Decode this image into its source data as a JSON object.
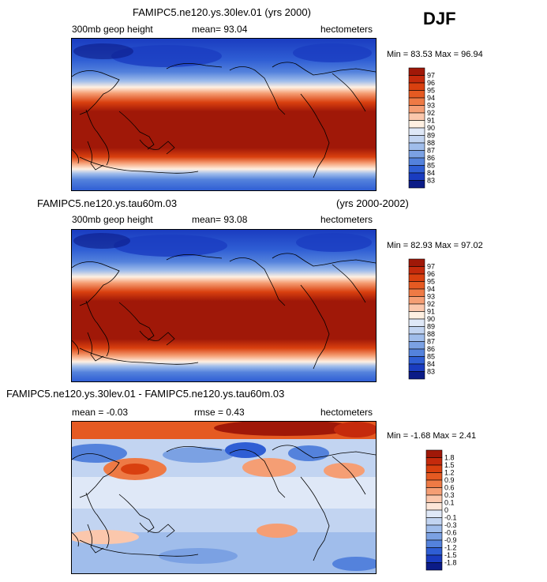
{
  "season": "DJF",
  "chart_data": [
    {
      "type": "heatmap",
      "title": "FAMIPC5.ne120.ys.30lev.01 (yrs 2000)",
      "variable": "300mb geop height",
      "summary": "mean=  93.04",
      "units": "hectometers",
      "min_max": "Min =  83.53  Max =  96.94",
      "min": 83.53,
      "max": 96.94,
      "mean": 93.04,
      "levels": [
        "97",
        "96",
        "95",
        "94",
        "93",
        "92",
        "91",
        "90",
        "89",
        "88",
        "87",
        "86",
        "85",
        "84",
        "83"
      ],
      "colors": [
        "#a01808",
        "#c52a0c",
        "#d9400f",
        "#e55a22",
        "#ee7a45",
        "#f59e74",
        "#fbc7ac",
        "#fff0e2",
        "#dfe8f7",
        "#c2d4f1",
        "#a0bdeb",
        "#7ba1e3",
        "#5482dc",
        "#2f5ed4",
        "#1a3cc0",
        "#0b1b87"
      ]
    },
    {
      "type": "heatmap",
      "title": "FAMIPC5.ne120.ys.tau60m.03",
      "years": "(yrs 2000-2002)",
      "variable": "300mb geop height",
      "summary": "mean=  93.08",
      "units": "hectometers",
      "min_max": "Min =  82.93  Max =  97.02",
      "min": 82.93,
      "max": 97.02,
      "mean": 93.08,
      "levels": [
        "97",
        "96",
        "95",
        "94",
        "93",
        "92",
        "91",
        "90",
        "89",
        "88",
        "87",
        "86",
        "85",
        "84",
        "83"
      ],
      "colors": [
        "#a01808",
        "#c52a0c",
        "#d9400f",
        "#e55a22",
        "#ee7a45",
        "#f59e74",
        "#fbc7ac",
        "#fff0e2",
        "#dfe8f7",
        "#c2d4f1",
        "#a0bdeb",
        "#7ba1e3",
        "#5482dc",
        "#2f5ed4",
        "#1a3cc0",
        "#0b1b87"
      ]
    },
    {
      "type": "heatmap",
      "title": "FAMIPC5.ne120.ys.30lev.01 - FAMIPC5.ne120.ys.tau60m.03",
      "summary": "mean =  -0.03",
      "rmse": "rmse =   0.43",
      "units": "hectometers",
      "min_max": "Min =  -1.68  Max =   2.41",
      "min": -1.68,
      "max": 2.41,
      "mean": -0.03,
      "rmse_value": 0.43,
      "levels": [
        "1.8",
        "1.5",
        "1.2",
        "0.9",
        "0.6",
        "0.3",
        "0.1",
        "0",
        "-0.1",
        "-0.3",
        "-0.6",
        "-0.9",
        "-1.2",
        "-1.5",
        "-1.8"
      ],
      "colors": [
        "#a01808",
        "#c52a0c",
        "#d9400f",
        "#e55a22",
        "#ee7a45",
        "#f59e74",
        "#fbc7ac",
        "#fde6d8",
        "#dfe8f7",
        "#c2d4f1",
        "#a0bdeb",
        "#7ba1e3",
        "#5482dc",
        "#2f5ed4",
        "#1a3cc0",
        "#0b1b87"
      ]
    }
  ]
}
